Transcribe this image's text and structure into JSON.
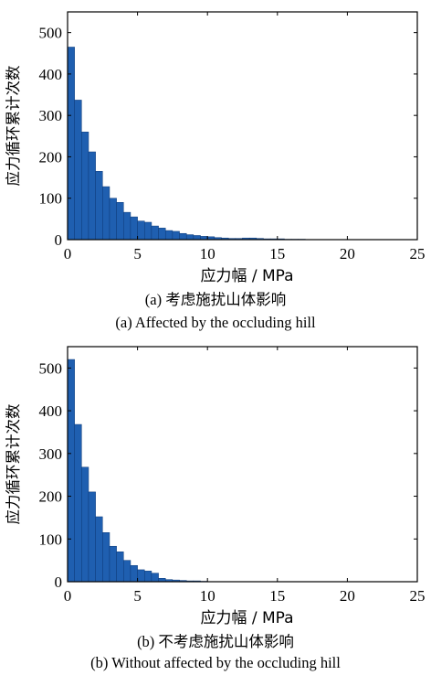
{
  "panels": [
    {
      "caption_cn": "(a) 考虑施扰山体影响",
      "caption_en": "(a) Affected by the occluding hill"
    },
    {
      "caption_cn": "(b) 不考虑施扰山体影响",
      "caption_en": "(b) Without affected by the occluding hill"
    }
  ],
  "chart_data": [
    {
      "type": "bar",
      "title": "",
      "xlabel": "应力幅 / MPa",
      "ylabel": "应力循环累计次数",
      "xlim": [
        0,
        25
      ],
      "ylim": [
        0,
        550
      ],
      "xticks": [
        "0",
        "5",
        "10",
        "15",
        "20",
        "25"
      ],
      "yticks": [
        "0",
        "100",
        "200",
        "300",
        "400",
        "500"
      ],
      "bin_width": 0.5,
      "x": [
        0,
        0.5,
        1,
        1.5,
        2,
        2.5,
        3,
        3.5,
        4,
        4.5,
        5,
        5.5,
        6,
        6.5,
        7,
        7.5,
        8,
        8.5,
        9,
        9.5,
        10,
        10.5,
        11,
        11.5,
        12,
        12.5,
        13,
        13.5,
        14,
        14.5,
        15,
        15.5,
        16,
        16.5
      ],
      "values": [
        465,
        337,
        260,
        212,
        165,
        128,
        100,
        90,
        66,
        55,
        45,
        42,
        33,
        28,
        22,
        20,
        15,
        12,
        10,
        8,
        7,
        5,
        4,
        3,
        3,
        4,
        4,
        3,
        2,
        2,
        2,
        1,
        1,
        1
      ],
      "color": "#1f5fb0",
      "edge_color": "#0d3a78"
    },
    {
      "type": "bar",
      "title": "",
      "xlabel": "应力幅 / MPa",
      "ylabel": "应力循环累计次数",
      "xlim": [
        0,
        25
      ],
      "ylim": [
        0,
        550
      ],
      "xticks": [
        "0",
        "5",
        "10",
        "15",
        "20",
        "25"
      ],
      "yticks": [
        "0",
        "100",
        "200",
        "300",
        "400",
        "500"
      ],
      "bin_width": 0.5,
      "x": [
        0,
        0.5,
        1,
        1.5,
        2,
        2.5,
        3,
        3.5,
        4,
        4.5,
        5,
        5.5,
        6,
        6.5,
        7,
        7.5,
        8,
        8.5,
        9,
        9.5
      ],
      "values": [
        520,
        368,
        268,
        210,
        152,
        115,
        83,
        70,
        50,
        38,
        28,
        25,
        20,
        8,
        5,
        4,
        3,
        2,
        2,
        1
      ],
      "color": "#1f5fb0",
      "edge_color": "#0d3a78"
    }
  ]
}
